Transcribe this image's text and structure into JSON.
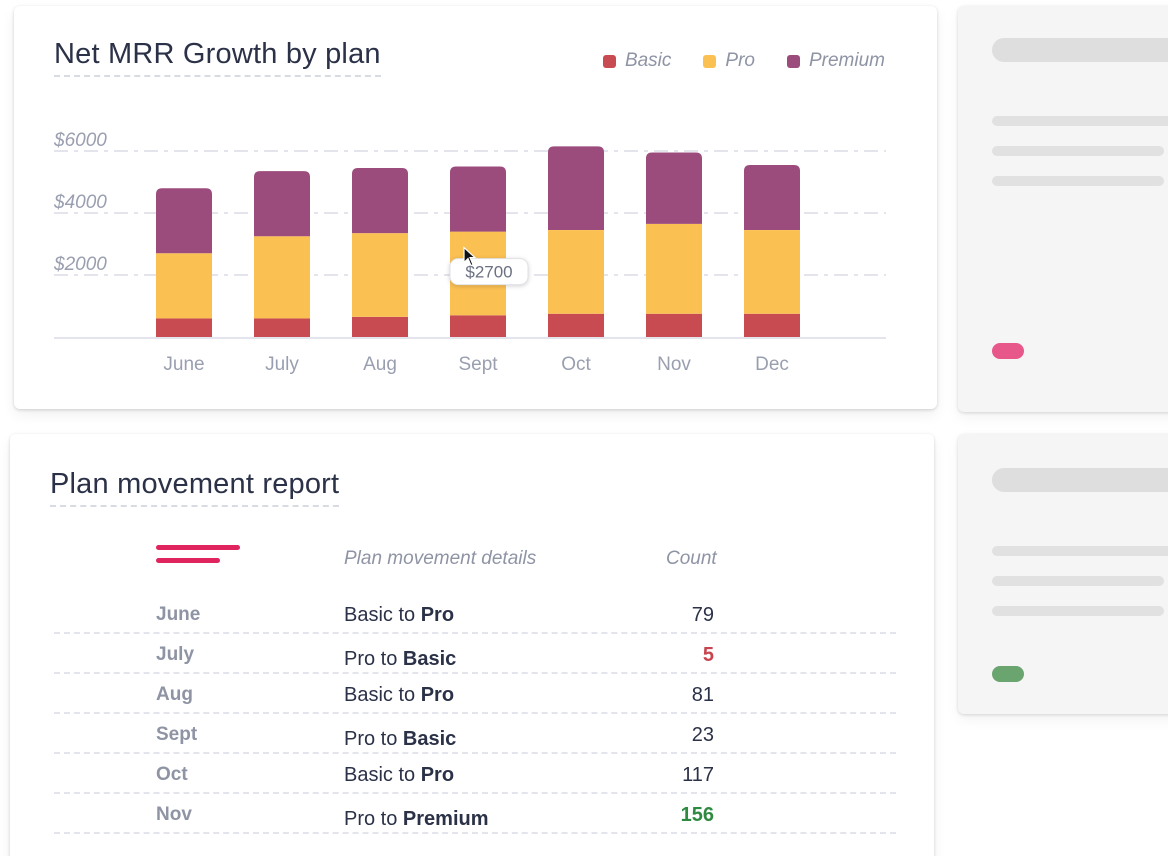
{
  "chart_card": {
    "title": "Net MRR Growth by plan"
  },
  "chart_data": {
    "type": "bar",
    "stacked": true,
    "title": "Net MRR Growth by plan",
    "categories": [
      "June",
      "July",
      "Aug",
      "Sept",
      "Oct",
      "Nov",
      "Dec"
    ],
    "series": [
      {
        "name": "Basic",
        "color": "#c94b52",
        "values": [
          600,
          600,
          650,
          700,
          750,
          750,
          750
        ]
      },
      {
        "name": "Pro",
        "color": "#fbc052",
        "values": [
          2100,
          2650,
          2700,
          2700,
          2700,
          2900,
          2700
        ]
      },
      {
        "name": "Premium",
        "color": "#9b4b7c",
        "values": [
          2100,
          2100,
          2100,
          2100,
          2700,
          2300,
          2100
        ]
      }
    ],
    "y_ticks": [
      "$6000",
      "$4000",
      "$2000"
    ],
    "ylim": [
      0,
      6500
    ],
    "grid": true,
    "legend": "top-right",
    "tooltip": {
      "category": "Sept",
      "series": "Pro",
      "label": "$2700"
    }
  },
  "table_card": {
    "title": "Plan movement report",
    "col_details": "Plan movement details",
    "col_count": "Count",
    "rows": [
      {
        "month": "June",
        "from": "Basic to",
        "to": "Pro",
        "count": "79",
        "tone": "normal"
      },
      {
        "month": "July",
        "from": "Pro to",
        "to": "Basic",
        "count": "5",
        "tone": "negative"
      },
      {
        "month": "Aug",
        "from": "Basic to",
        "to": "Pro",
        "count": "81",
        "tone": "normal"
      },
      {
        "month": "Sept",
        "from": "Pro to",
        "to": "Basic",
        "count": "23",
        "tone": "normal"
      },
      {
        "month": "Oct",
        "from": "Basic to",
        "to": "Pro",
        "count": "117",
        "tone": "normal"
      },
      {
        "month": "Nov",
        "from": "Pro to",
        "to": "Premium",
        "count": "156",
        "tone": "positive"
      }
    ]
  },
  "colors": {
    "accent": "#e0245e",
    "skeleton_pill_top": "#e8578a",
    "skeleton_pill_bottom": "#6aa56f"
  }
}
